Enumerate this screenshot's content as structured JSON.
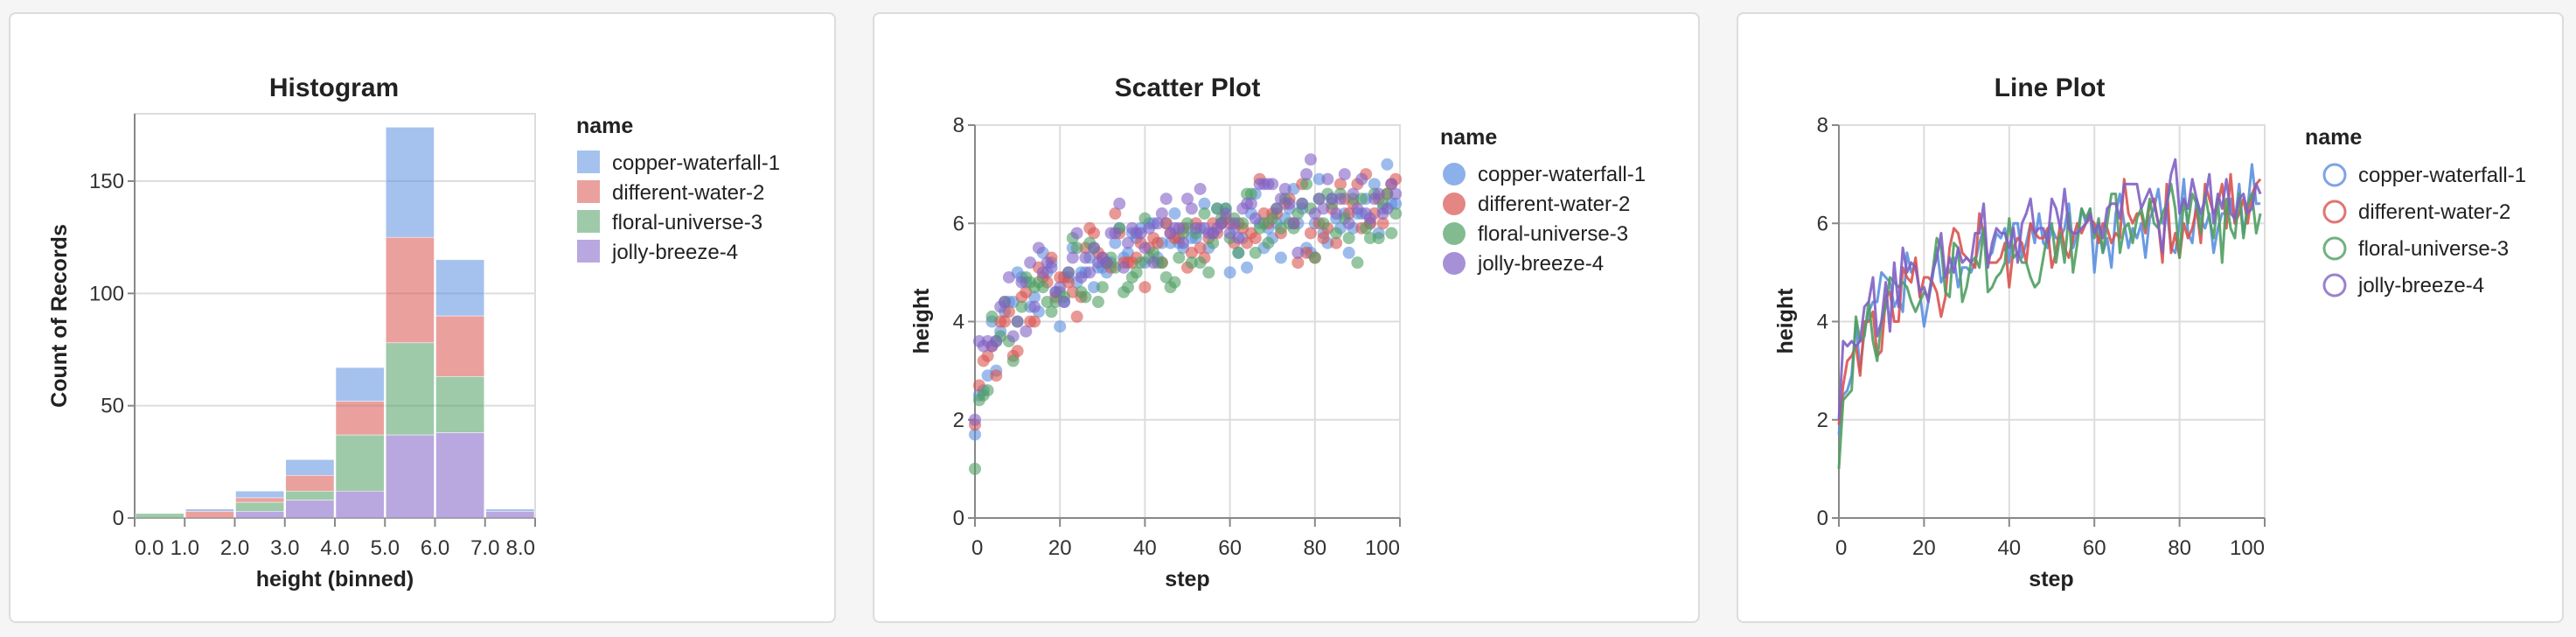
{
  "colors": {
    "copper-waterfall-1": "#5b8fe0",
    "different-water-2": "#d9534f",
    "floral-universe-3": "#4f9e62",
    "jolly-breeze-4": "#8061c4"
  },
  "chart_data": [
    {
      "type": "bar",
      "stacked": true,
      "title": "Histogram",
      "xlabel": "height (binned)",
      "ylabel": "Count of Records",
      "ylim": [
        0,
        180
      ],
      "yticks": [
        0,
        50,
        100,
        150
      ],
      "xtick_labels": [
        "0.0",
        "1.0",
        "2.0",
        "3.0",
        "4.0",
        "5.0",
        "6.0",
        "7.0",
        "8.0"
      ],
      "bins": [
        [
          0,
          1
        ],
        [
          1,
          2
        ],
        [
          2,
          3
        ],
        [
          3,
          4
        ],
        [
          4,
          5
        ],
        [
          5,
          6
        ],
        [
          6,
          7
        ],
        [
          7,
          8
        ]
      ],
      "grid": true,
      "legend": {
        "title": "name",
        "placement": "right",
        "symbol": "square"
      },
      "series": [
        {
          "name": "jolly-breeze-4",
          "values": [
            0,
            0,
            3,
            8,
            12,
            37,
            38,
            3
          ]
        },
        {
          "name": "floral-universe-3",
          "values": [
            2,
            0,
            4,
            4,
            25,
            41,
            25,
            0
          ]
        },
        {
          "name": "different-water-2",
          "values": [
            0,
            3,
            2,
            7,
            15,
            47,
            27,
            0
          ]
        },
        {
          "name": "copper-waterfall-1",
          "values": [
            0,
            1,
            3,
            7,
            15,
            49,
            25,
            1
          ]
        }
      ]
    },
    {
      "type": "scatter",
      "title": "Scatter Plot",
      "xlabel": "step",
      "ylabel": "height",
      "xlim": [
        0,
        100
      ],
      "ylim": [
        0,
        8
      ],
      "xticks": [
        0,
        20,
        40,
        60,
        80,
        100
      ],
      "yticks": [
        0,
        2,
        4,
        6,
        8
      ],
      "grid": true,
      "legend": {
        "title": "name",
        "placement": "right",
        "symbol": "filled-circle"
      },
      "series_ref": "runs"
    },
    {
      "type": "line",
      "title": "Line Plot",
      "xlabel": "step",
      "ylabel": "height",
      "xlim": [
        0,
        100
      ],
      "ylim": [
        0,
        8
      ],
      "xticks": [
        0,
        20,
        40,
        60,
        80,
        100
      ],
      "yticks": [
        0,
        2,
        4,
        6,
        8
      ],
      "grid": true,
      "legend": {
        "title": "name",
        "placement": "right",
        "symbol": "open-circle"
      },
      "series_ref": "runs"
    }
  ],
  "runs": [
    {
      "name": "copper-waterfall-1",
      "values": [
        1.7,
        2.5,
        2.6,
        2.9,
        4.0,
        3.0,
        3.8,
        4.2,
        4.4,
        4.4,
        5.0,
        4.9,
        4.8,
        4.3,
        4.5,
        4.2,
        5.4,
        5.0,
        5.2,
        4.6,
        3.9,
        4.4,
        4.9,
        5.5,
        4.8,
        5.0,
        5.0,
        5.3,
        4.7,
        5.1,
        5.1,
        5.0,
        5.2,
        5.6,
        5.9,
        5.3,
        5.4,
        5.8,
        5.7,
        5.9,
        5.2,
        6.0,
        6.0,
        5.3,
        5.6,
        6.0,
        5.6,
        6.2,
        5.6,
        5.5,
        5.9,
        5.7,
        5.7,
        5.9,
        6.4,
        5.5,
        5.8,
        6.3,
        6.0,
        6.3,
        5.0,
        5.9,
        5.4,
        5.7,
        5.1,
        6.2,
        6.6,
        6.0,
        5.5,
        5.9,
        5.7,
        6.0,
        5.3,
        6.1,
        6.3,
        6.7,
        6.0,
        6.3,
        5.5,
        5.4,
        6.0,
        6.9,
        5.8,
        5.6,
        6.5,
        6.1,
        5.9,
        6.2,
        5.4,
        5.9,
        6.2,
        6.2,
        6.5,
        6.0,
        6.8,
        5.8,
        6.3,
        7.2,
        6.4,
        6.4
      ]
    },
    {
      "name": "different-water-2",
      "values": [
        1.9,
        2.7,
        3.2,
        3.3,
        3.5,
        2.9,
        4.0,
        4.0,
        4.2,
        3.3,
        3.4,
        4.5,
        4.6,
        4.0,
        4.0,
        5.1,
        4.9,
        4.8,
        5.3,
        4.5,
        4.9,
        4.9,
        4.8,
        4.6,
        4.1,
        4.5,
        5.5,
        5.9,
        5.8,
        5.4,
        5.3,
        5.2,
        5.1,
        6.2,
        5.8,
        5.2,
        5.2,
        5.2,
        5.3,
        5.6,
        4.7,
        5.5,
        5.7,
        5.6,
        5.2,
        6.0,
        5.8,
        5.7,
        5.7,
        5.9,
        5.1,
        5.4,
        6.0,
        5.5,
        5.3,
        5.7,
        6.0,
        5.8,
        6.0,
        6.1,
        6.0,
        5.6,
        6.0,
        5.9,
        5.6,
        5.8,
        5.7,
        6.9,
        6.2,
        6.0,
        6.2,
        6.2,
        5.8,
        6.4,
        6.5,
        6.0,
        5.2,
        6.8,
        5.4,
        5.8,
        5.3,
        6.0,
        5.7,
        5.9,
        6.3,
        5.6,
        6.8,
        6.5,
        6.2,
        6.4,
        6.8,
        5.9,
        7.0,
        6.0,
        6.2,
        6.5,
        6.0,
        6.6,
        6.8,
        6.9
      ]
    },
    {
      "name": "floral-universe-3",
      "values": [
        1.0,
        2.4,
        2.5,
        2.6,
        4.1,
        3.6,
        3.7,
        4.4,
        3.6,
        3.2,
        4.0,
        4.3,
        4.9,
        4.8,
        4.7,
        4.8,
        4.7,
        4.4,
        4.2,
        4.4,
        4.6,
        4.5,
        5.0,
        5.7,
        5.5,
        4.6,
        4.5,
        5.6,
        5.5,
        4.4,
        4.7,
        5.2,
        5.3,
        5.1,
        5.9,
        4.6,
        4.7,
        4.9,
        5.0,
        5.2,
        6.1,
        5.3,
        5.4,
        5.2,
        5.2,
        4.9,
        4.7,
        4.8,
        5.3,
        5.8,
        6.0,
        5.2,
        5.8,
        5.2,
        6.2,
        5.0,
        5.6,
        6.3,
        6.1,
        6.3,
        5.7,
        6.1,
        5.4,
        6.0,
        6.6,
        6.6,
        5.4,
        5.9,
        6.0,
        5.6,
        6.1,
        6.3,
        5.9,
        6.5,
        6.0,
        5.9,
        6.2,
        6.4,
        6.8,
        6.3,
        5.3,
        6.5,
        6.0,
        6.6,
        6.4,
        5.8,
        6.6,
        6.1,
        5.7,
        6.5,
        5.2,
        6.5,
        5.9,
        5.7,
        6.6,
        5.7,
        6.4,
        6.6,
        5.8,
        6.2
      ]
    },
    {
      "name": "jolly-breeze-4",
      "values": [
        2.0,
        3.6,
        3.5,
        3.6,
        3.5,
        3.6,
        4.3,
        4.4,
        4.9,
        3.7,
        4.0,
        4.8,
        3.8,
        5.2,
        4.3,
        5.5,
        5.0,
        5.2,
        5.1,
        4.6,
        4.7,
        4.4,
        5.0,
        5.3,
        5.8,
        4.9,
        5.3,
        5.0,
        5.5,
        5.2,
        5.3,
        5.2,
        5.8,
        5.8,
        6.4,
        5.1,
        5.6,
        5.9,
        5.8,
        5.8,
        5.5,
        5.9,
        5.2,
        6.0,
        6.2,
        6.5,
        5.8,
        5.9,
        5.9,
        5.6,
        6.5,
        6.3,
        5.9,
        6.7,
        5.9,
        5.8,
        5.8,
        5.9,
        6.0,
        6.2,
        5.8,
        6.0,
        5.7,
        6.3,
        6.4,
        6.4,
        6.1,
        6.8,
        6.8,
        6.8,
        6.8,
        6.3,
        6.5,
        6.7,
        6.4,
        6.0,
        5.4,
        6.4,
        7.0,
        7.3,
        6.2,
        6.5,
        6.3,
        6.9,
        6.5,
        6.2,
        6.5,
        7.0,
        6.0,
        6.6,
        6.3,
        6.9,
        6.2,
        6.1,
        6.5,
        6.6,
        6.2,
        6.3,
        6.8,
        6.6
      ]
    }
  ],
  "legend_order": [
    "copper-waterfall-1",
    "different-water-2",
    "floral-universe-3",
    "jolly-breeze-4"
  ]
}
